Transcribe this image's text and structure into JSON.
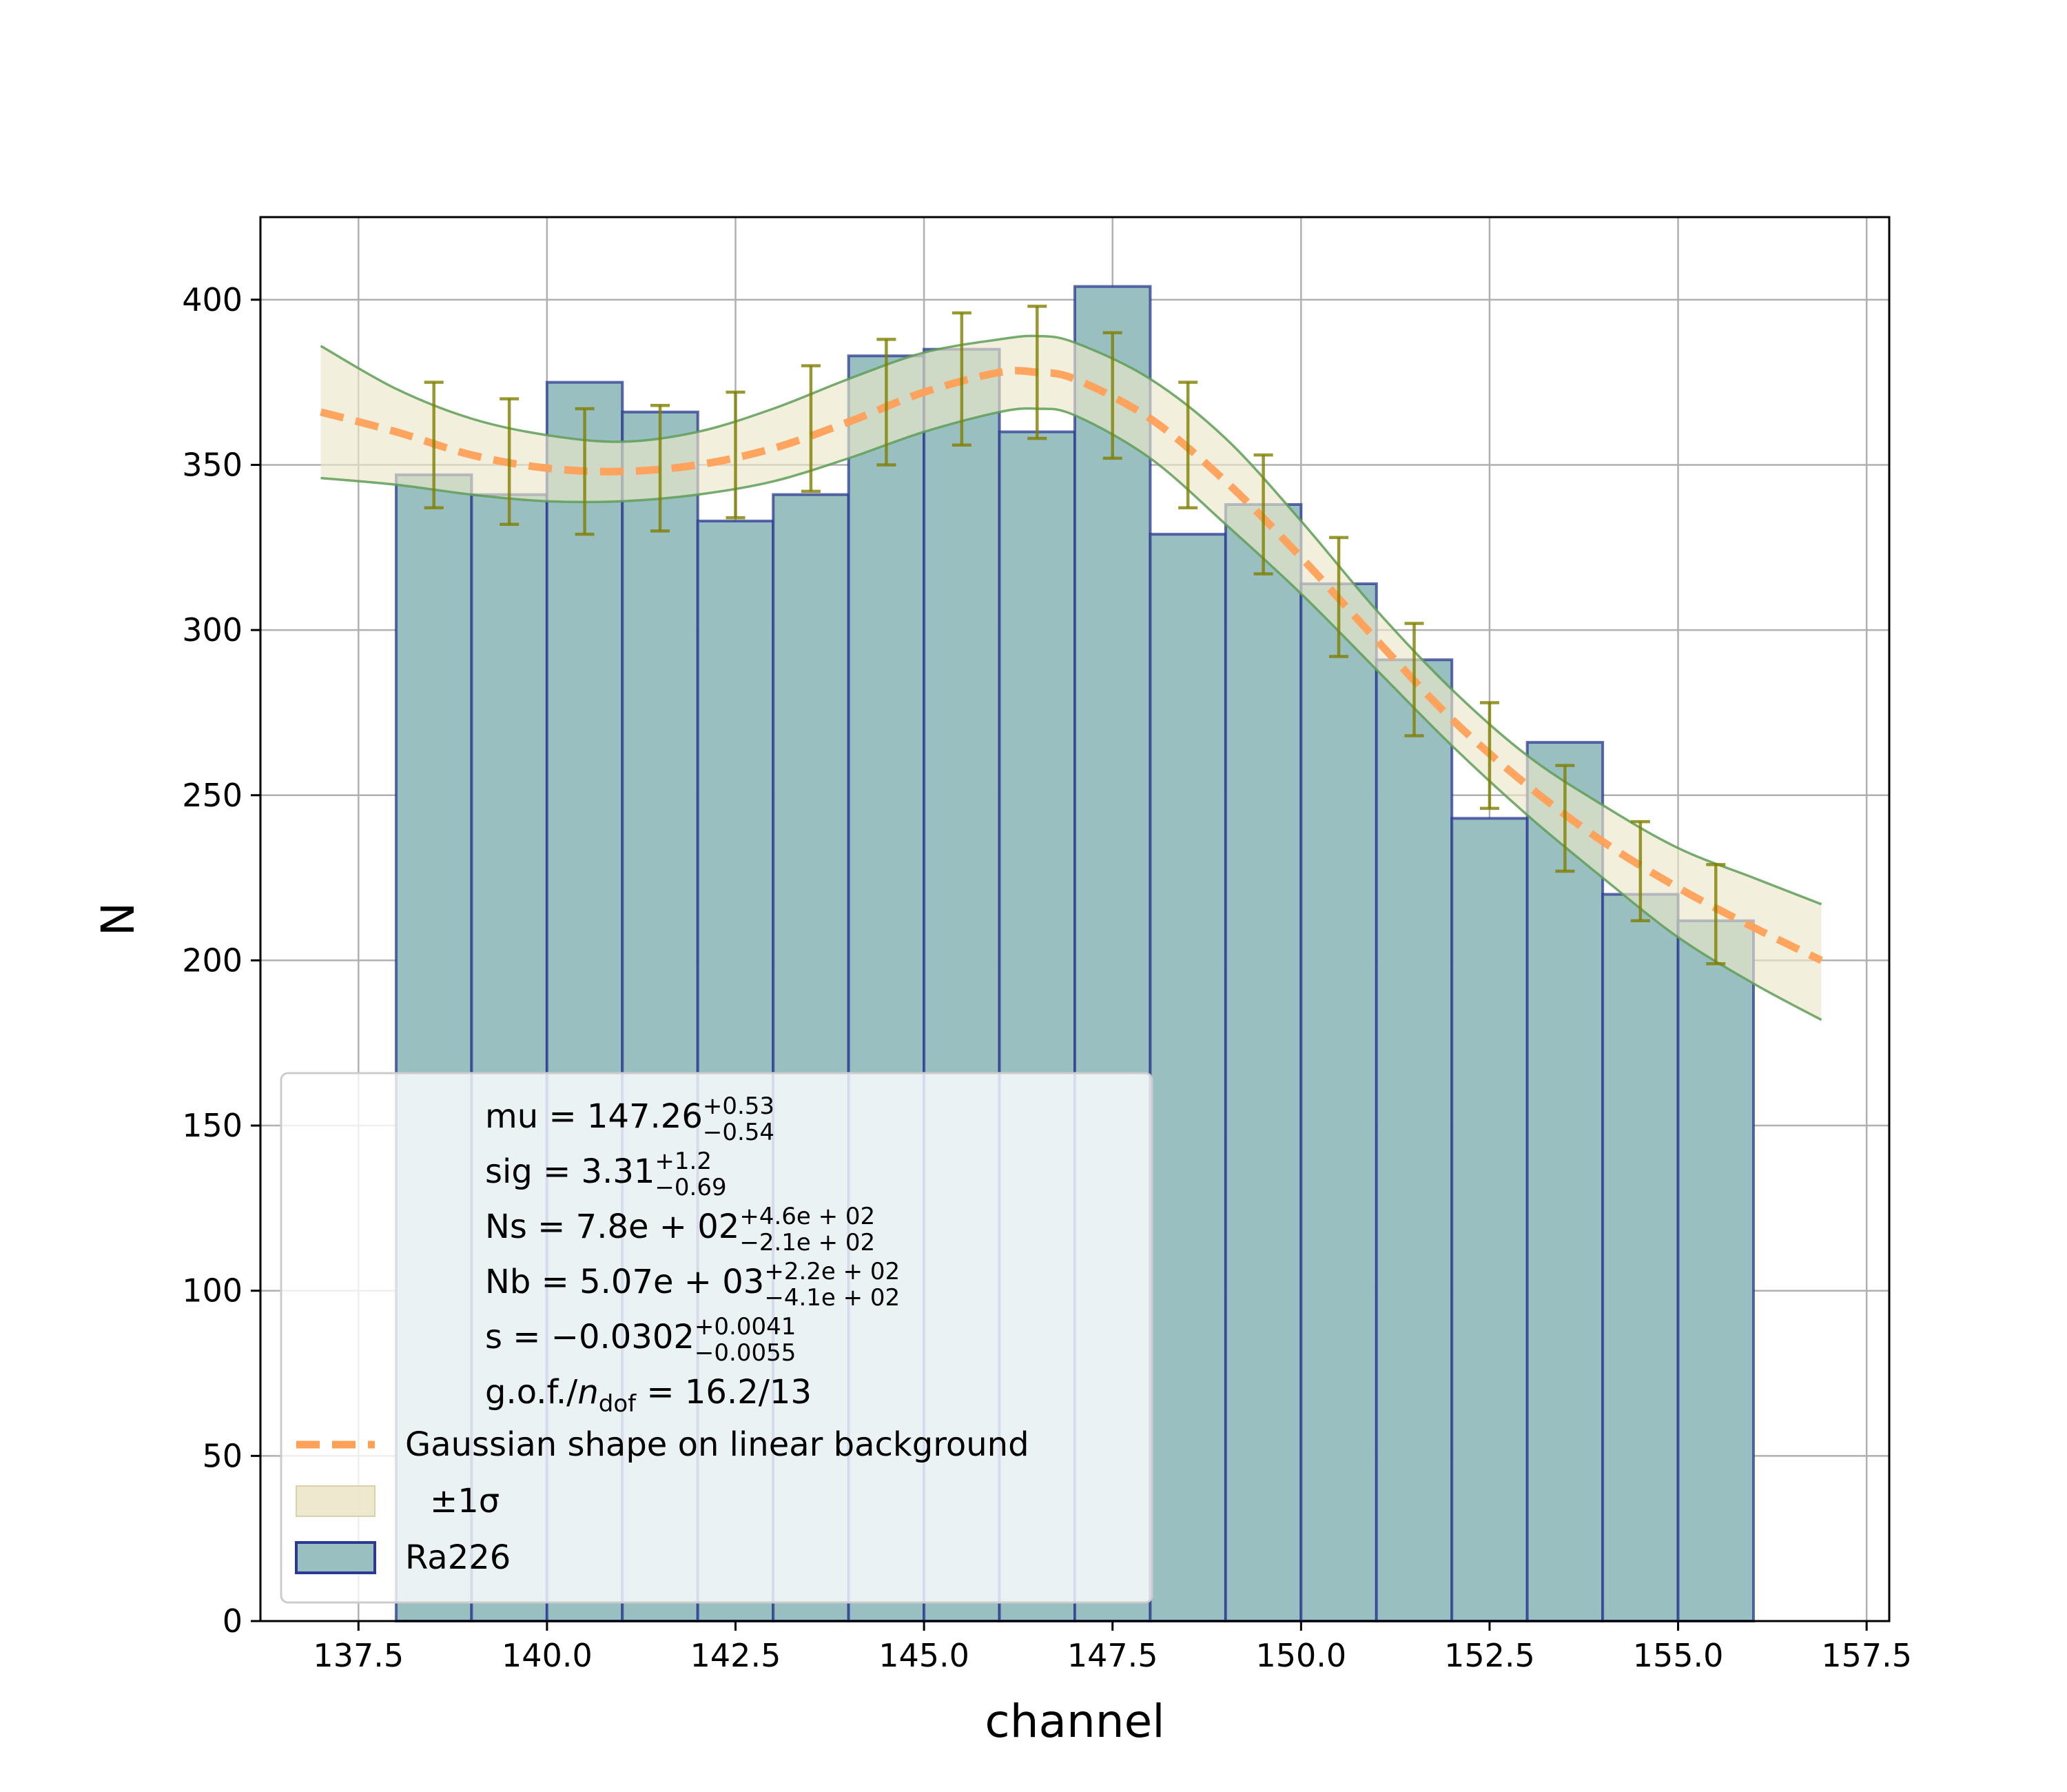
{
  "chart_data": {
    "type": "bar",
    "title": "",
    "xlabel": "channel",
    "ylabel": "N",
    "xlim": [
      136.2,
      157.8
    ],
    "ylim": [
      0,
      425
    ],
    "grid": true,
    "xticks": [
      137.5,
      140.0,
      142.5,
      145.0,
      147.5,
      150.0,
      152.5,
      155.0,
      157.5
    ],
    "xtick_labels": [
      "137.5",
      "140.0",
      "142.5",
      "145.0",
      "147.5",
      "150.0",
      "152.5",
      "155.0",
      "157.5"
    ],
    "yticks": [
      0,
      50,
      100,
      150,
      200,
      250,
      300,
      350,
      400
    ],
    "ytick_labels": [
      "0",
      "50",
      "100",
      "150",
      "200",
      "250",
      "300",
      "350",
      "400"
    ],
    "histogram": {
      "name": "Ra226",
      "bin_edges": [
        138,
        139,
        140,
        141,
        142,
        143,
        144,
        145,
        146,
        147,
        148,
        149,
        150,
        151,
        152,
        153,
        154,
        155,
        156
      ],
      "values": [
        347,
        341,
        375,
        366,
        333,
        341,
        383,
        385,
        360,
        404,
        329,
        338,
        314,
        291,
        243,
        266,
        220,
        212
      ],
      "face_color": "#99bfc1",
      "edge_color": "#2b3990"
    },
    "error_bars": {
      "x": [
        138.5,
        139.5,
        140.5,
        141.5,
        142.5,
        143.5,
        144.5,
        145.5,
        146.5,
        147.5,
        148.5,
        149.5,
        150.5,
        151.5,
        152.5,
        153.5,
        154.5,
        155.5
      ],
      "y": [
        356,
        351,
        348,
        349,
        353,
        361,
        369,
        376,
        378,
        371,
        356,
        335,
        310,
        285,
        262,
        243,
        227,
        214
      ],
      "err": [
        19,
        19,
        19,
        19,
        19,
        19,
        19,
        20,
        20,
        19,
        19,
        18,
        18,
        17,
        16,
        16,
        15,
        15
      ],
      "color": "#808000"
    },
    "fit": {
      "name": "Gaussian shape on linear background",
      "color": "#ffa057",
      "line_style": "dashed",
      "x": [
        137.0,
        138.0,
        139.0,
        140.0,
        141.0,
        142.0,
        143.0,
        144.0,
        145.0,
        146.0,
        146.5,
        147.0,
        148.0,
        149.0,
        150.0,
        151.0,
        152.0,
        153.0,
        154.0,
        155.0,
        156.0,
        156.9
      ],
      "y": [
        366,
        360,
        353,
        349,
        348,
        350,
        355,
        363,
        372,
        378,
        378,
        376,
        364,
        345,
        322,
        297,
        273,
        253,
        236,
        222,
        210,
        200
      ]
    },
    "band": {
      "name": "±1σ",
      "fill_color": "#ebe6c9",
      "edge_color": "#5f9e57",
      "x": [
        137.0,
        138.0,
        139.0,
        140.0,
        141.0,
        142.0,
        143.0,
        144.0,
        145.0,
        146.0,
        146.5,
        147.0,
        148.0,
        149.0,
        150.0,
        151.0,
        152.0,
        153.0,
        154.0,
        155.0,
        156.0,
        156.9
      ],
      "upper": [
        386,
        373,
        364,
        359,
        357,
        360,
        367,
        376,
        384,
        388,
        389,
        387,
        376,
        358,
        333,
        306,
        282,
        262,
        247,
        234,
        225,
        217
      ],
      "lower": [
        346,
        344,
        341,
        339,
        339,
        341,
        345,
        352,
        360,
        366,
        367,
        365,
        352,
        332,
        311,
        288,
        265,
        244,
        225,
        207,
        193,
        182
      ]
    },
    "legend": {
      "placement": "lower-left",
      "parameters": [
        {
          "name": "mu",
          "value": "147.26",
          "sup": "+0.53",
          "sub": "−0.54"
        },
        {
          "name": "sig",
          "value": "3.31",
          "sup": "+1.2",
          "sub": "−0.69"
        },
        {
          "name": "Ns",
          "value": "7.8e + 02",
          "sup": "+4.6e + 02",
          "sub": "−2.1e + 02"
        },
        {
          "name": "Nb",
          "value": "5.07e + 03",
          "sup": "+2.2e + 02",
          "sub": "−4.1e + 02"
        },
        {
          "name": "s",
          "value": "−0.0302",
          "sup": "+0.0041",
          "sub": "−0.0055"
        }
      ],
      "gof": {
        "prefix": "g.o.f./",
        "n": "n",
        "dof": "dof",
        "value": " = 16.2/13"
      },
      "entries": [
        {
          "label": "Gaussian shape on linear background",
          "kind": "line"
        },
        {
          "label": "±1σ",
          "kind": "band"
        },
        {
          "label": "Ra226",
          "kind": "bar"
        }
      ]
    }
  }
}
